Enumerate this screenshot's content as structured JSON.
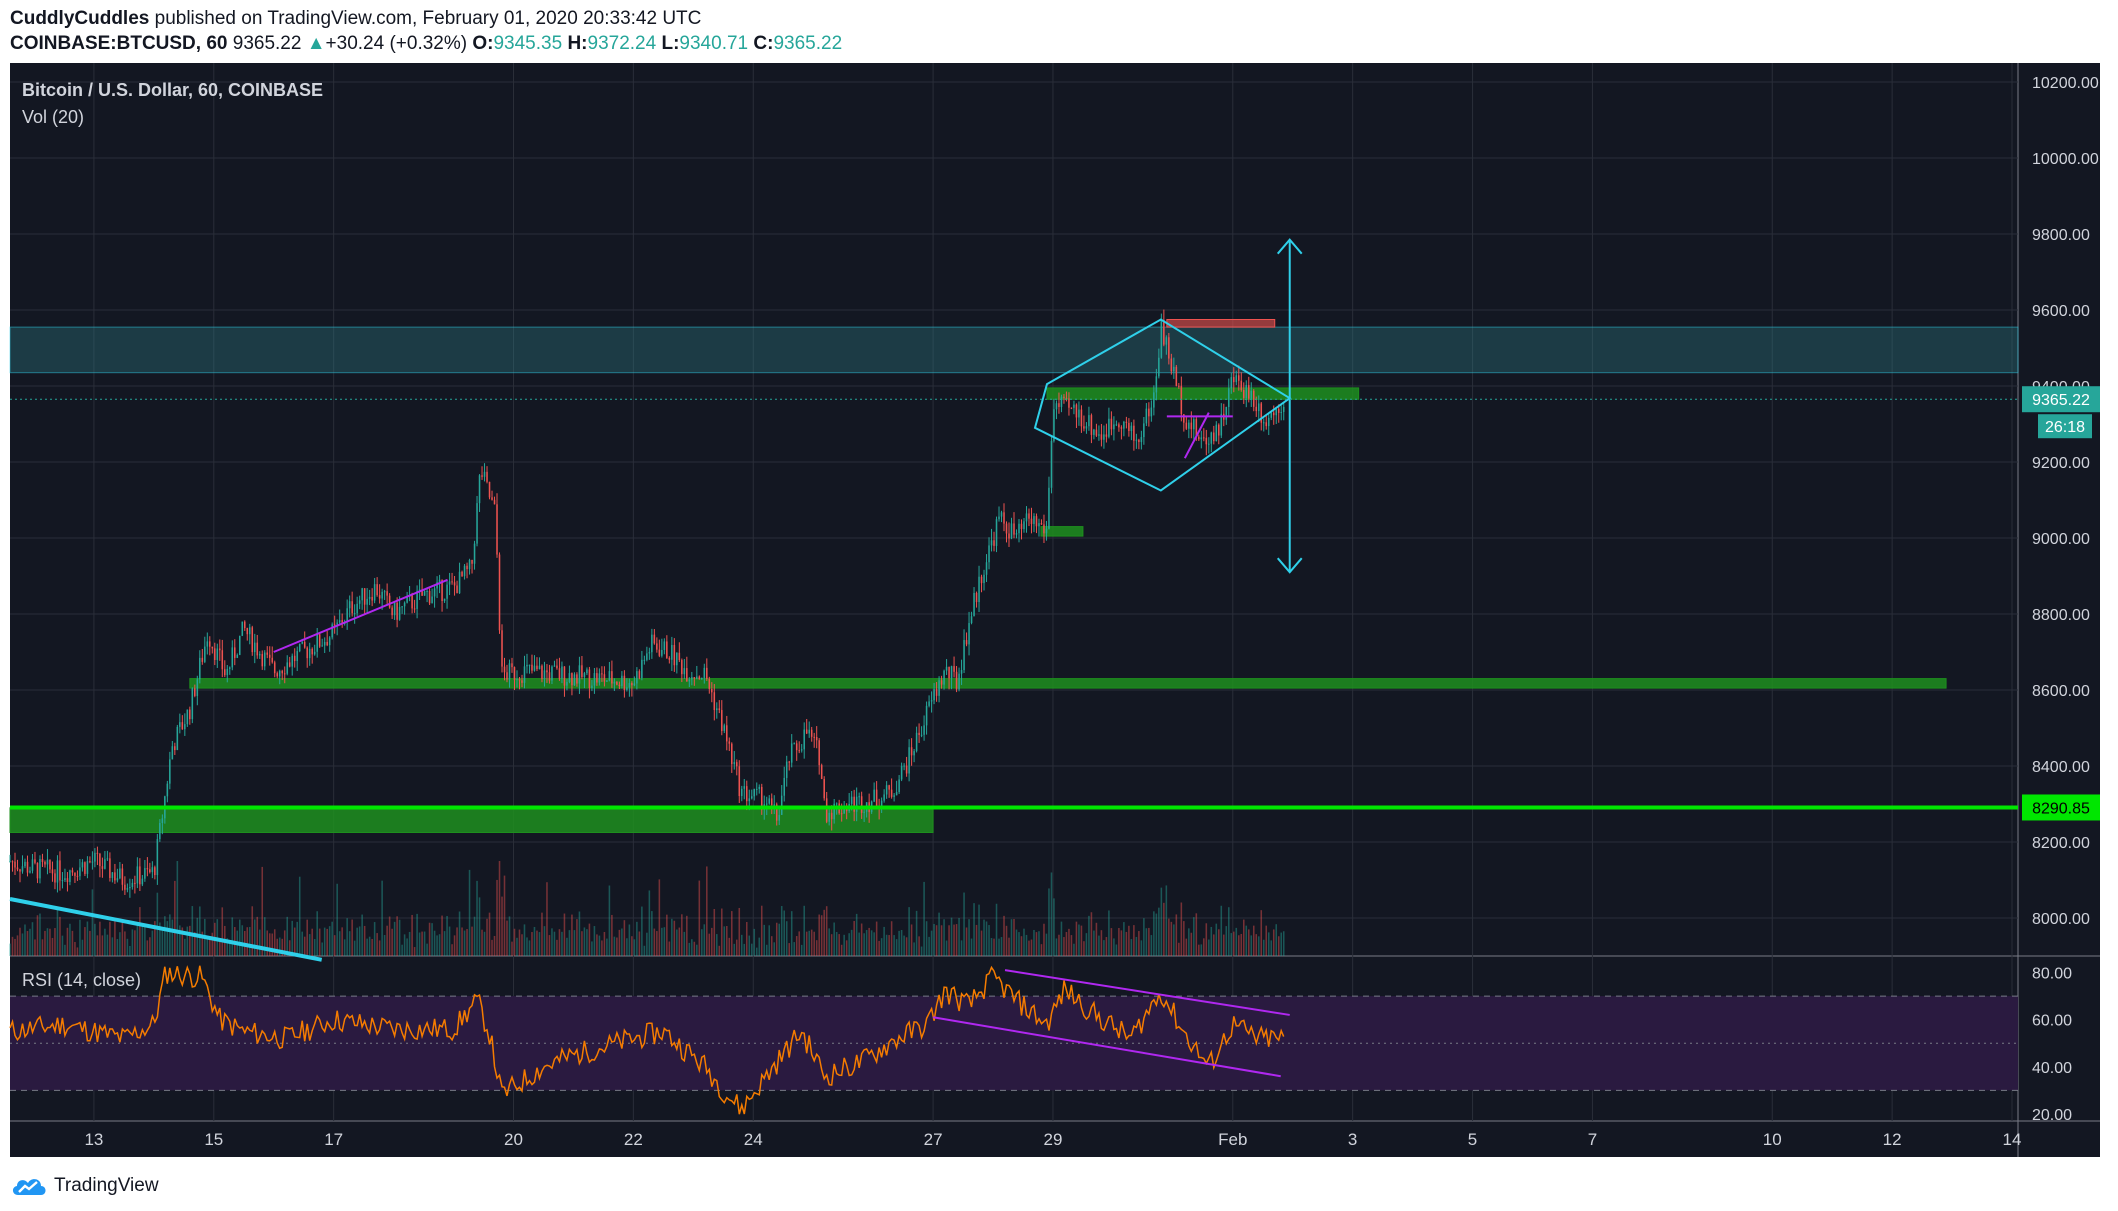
{
  "header": {
    "author": "CuddlyCuddles",
    "published_text": "published on TradingView.com, February 01, 2020 20:33:42 UTC",
    "symbol": "COINBASE:BTCUSD, 60",
    "last": "9365.22",
    "change": "+30.24 (+0.32%)",
    "open_label": "O:",
    "open": "9345.35",
    "high_label": "H:",
    "high": "9372.24",
    "low_label": "L:",
    "low": "9340.71",
    "close_label": "C:",
    "close": "9365.22"
  },
  "footer": {
    "brand": "TradingView"
  },
  "colors": {
    "background": "#131722",
    "up": "#26a69a",
    "down": "#ef5350",
    "green_zone": "#1e8f1e",
    "bright_green": "#00e600",
    "teal_zone": "#2f7f88",
    "cyan": "#2fd0ea",
    "purple": "#b028f0",
    "rsi_line": "#f57c00",
    "rsi_band": "#2a1a40"
  },
  "chart_data": {
    "type": "candlestick",
    "title": "Bitcoin / U.S. Dollar, 60, COINBASE",
    "volume_label": "Vol (20)",
    "price_ylim": [
      7900,
      10250
    ],
    "price_ticks": [
      "10200.00",
      "10000.00",
      "9800.00",
      "9600.00",
      "9400.00",
      "9200.00",
      "9000.00",
      "8800.00",
      "8600.00",
      "8400.00",
      "8200.00",
      "8000.00"
    ],
    "price_tick_values": [
      10200,
      10000,
      9800,
      9600,
      9400,
      9200,
      9000,
      8800,
      8600,
      8400,
      8200,
      8000
    ],
    "last_price_label": "9365.22",
    "last_price": 9365.22,
    "countdown_label": "26:18",
    "level_label": "8290.85",
    "level_price": 8290.85,
    "x_ticks": [
      "13",
      "15",
      "17",
      "20",
      "22",
      "24",
      "27",
      "29",
      "Feb",
      "3",
      "5",
      "7",
      "10",
      "12",
      "14"
    ],
    "x_tick_days": [
      13,
      15,
      17,
      20,
      22,
      24,
      27,
      29,
      32,
      34,
      36,
      38,
      41,
      43,
      45
    ],
    "x_range_days": [
      11.6,
      45.1
    ],
    "data_end_day": 32.86,
    "anchors": [
      [
        11.6,
        8150
      ],
      [
        12.0,
        8130
      ],
      [
        12.5,
        8120
      ],
      [
        13.0,
        8150
      ],
      [
        13.5,
        8100
      ],
      [
        14.0,
        8120
      ],
      [
        14.15,
        8280
      ],
      [
        14.3,
        8450
      ],
      [
        14.6,
        8550
      ],
      [
        14.9,
        8750
      ],
      [
        15.2,
        8640
      ],
      [
        15.5,
        8760
      ],
      [
        16.0,
        8650
      ],
      [
        16.5,
        8700
      ],
      [
        17.0,
        8750
      ],
      [
        17.3,
        8820
      ],
      [
        17.7,
        8870
      ],
      [
        18.0,
        8800
      ],
      [
        18.5,
        8850
      ],
      [
        19.0,
        8870
      ],
      [
        19.3,
        8920
      ],
      [
        19.45,
        9180
      ],
      [
        19.7,
        9060
      ],
      [
        19.8,
        8640
      ],
      [
        20.2,
        8650
      ],
      [
        20.8,
        8640
      ],
      [
        21.5,
        8630
      ],
      [
        22.0,
        8620
      ],
      [
        22.3,
        8720
      ],
      [
        22.6,
        8700
      ],
      [
        22.9,
        8650
      ],
      [
        23.2,
        8640
      ],
      [
        23.5,
        8500
      ],
      [
        23.8,
        8330
      ],
      [
        24.2,
        8310
      ],
      [
        24.4,
        8260
      ],
      [
        24.6,
        8420
      ],
      [
        24.9,
        8490
      ],
      [
        25.1,
        8430
      ],
      [
        25.2,
        8280
      ],
      [
        25.6,
        8300
      ],
      [
        26.0,
        8310
      ],
      [
        26.3,
        8330
      ],
      [
        26.6,
        8420
      ],
      [
        27.0,
        8580
      ],
      [
        27.2,
        8650
      ],
      [
        27.4,
        8620
      ],
      [
        27.6,
        8780
      ],
      [
        27.8,
        8900
      ],
      [
        28.1,
        9050
      ],
      [
        28.4,
        9000
      ],
      [
        28.6,
        9050
      ],
      [
        28.9,
        9020
      ],
      [
        29.0,
        9350
      ],
      [
        29.4,
        9330
      ],
      [
        29.8,
        9270
      ],
      [
        30.1,
        9320
      ],
      [
        30.4,
        9250
      ],
      [
        30.7,
        9380
      ],
      [
        30.8,
        9560
      ],
      [
        31.0,
        9440
      ],
      [
        31.2,
        9320
      ],
      [
        31.5,
        9250
      ],
      [
        31.8,
        9300
      ],
      [
        32.0,
        9420
      ],
      [
        32.3,
        9380
      ],
      [
        32.55,
        9310
      ],
      [
        32.86,
        9365.22
      ]
    ],
    "zones": [
      {
        "label": "teal-resistance-zone",
        "day_from": 11.6,
        "day_to": 45.1,
        "price_from": 9435,
        "price_to": 9555
      },
      {
        "label": "green-support-zone-8600",
        "day_from": 14.6,
        "day_to": 43.9,
        "price_from": 8605,
        "price_to": 8630
      },
      {
        "label": "green-support-zone-8280",
        "day_from": 11.6,
        "day_to": 27.0,
        "price_from": 8225,
        "price_to": 8290
      },
      {
        "label": "green-zone-9020",
        "day_from": 28.8,
        "day_to": 29.5,
        "price_from": 9005,
        "price_to": 9030
      },
      {
        "label": "green-zone-9380",
        "day_from": 28.9,
        "day_to": 34.1,
        "price_from": 9365,
        "price_to": 9395
      },
      {
        "label": "red-zone-9565",
        "day_from": 30.9,
        "day_to": 32.7,
        "price_from": 9555,
        "price_to": 9575
      }
    ],
    "diamond": [
      [
        28.9,
        9405
      ],
      [
        30.8,
        9575
      ],
      [
        32.95,
        9368
      ],
      [
        30.8,
        9125
      ],
      [
        28.7,
        9290
      ]
    ],
    "arrow": {
      "day": 32.95,
      "price_top": 9785,
      "price_bottom": 8910
    },
    "trendline_cyan": [
      [
        11.6,
        8050
      ],
      [
        16.8,
        7890
      ]
    ],
    "purple_lines": [
      [
        [
          16.0,
          8700
        ],
        [
          18.9,
          8890
        ]
      ],
      [
        [
          31.2,
          9210
        ],
        [
          31.6,
          9330
        ]
      ],
      [
        [
          30.9,
          9320
        ],
        [
          32.0,
          9320
        ]
      ]
    ],
    "volume_scale_max": 100,
    "rsi": {
      "label": "RSI (14, close)",
      "ylim": [
        17,
        87
      ],
      "ticks": [
        "80.00",
        "60.00",
        "40.00",
        "20.00"
      ],
      "tick_values": [
        80,
        60,
        40,
        20
      ],
      "upper": 70,
      "lower": 30,
      "anchors": [
        [
          11.6,
          55
        ],
        [
          12.5,
          58
        ],
        [
          13.5,
          52
        ],
        [
          14.0,
          58
        ],
        [
          14.2,
          80
        ],
        [
          14.8,
          78
        ],
        [
          15.1,
          60
        ],
        [
          15.5,
          55
        ],
        [
          16.2,
          52
        ],
        [
          17.0,
          60
        ],
        [
          18.0,
          56
        ],
        [
          19.0,
          56
        ],
        [
          19.4,
          68
        ],
        [
          19.6,
          54
        ],
        [
          19.8,
          28
        ],
        [
          20.5,
          40
        ],
        [
          21.0,
          45
        ],
        [
          22.0,
          52
        ],
        [
          22.5,
          55
        ],
        [
          23.2,
          40
        ],
        [
          23.5,
          30
        ],
        [
          23.8,
          22
        ],
        [
          24.4,
          42
        ],
        [
          24.8,
          55
        ],
        [
          25.2,
          36
        ],
        [
          25.8,
          42
        ],
        [
          26.4,
          52
        ],
        [
          26.9,
          58
        ],
        [
          27.2,
          72
        ],
        [
          27.6,
          66
        ],
        [
          28.0,
          78
        ],
        [
          28.4,
          68
        ],
        [
          28.9,
          58
        ],
        [
          29.2,
          73
        ],
        [
          29.7,
          62
        ],
        [
          30.3,
          52
        ],
        [
          30.8,
          72
        ],
        [
          31.2,
          54
        ],
        [
          31.6,
          40
        ],
        [
          32.0,
          58
        ],
        [
          32.4,
          52
        ],
        [
          32.86,
          52
        ]
      ],
      "channel_upper": [
        [
          28.2,
          81
        ],
        [
          32.95,
          62
        ]
      ],
      "channel_lower": [
        [
          27.0,
          61
        ],
        [
          32.8,
          36
        ]
      ]
    }
  }
}
